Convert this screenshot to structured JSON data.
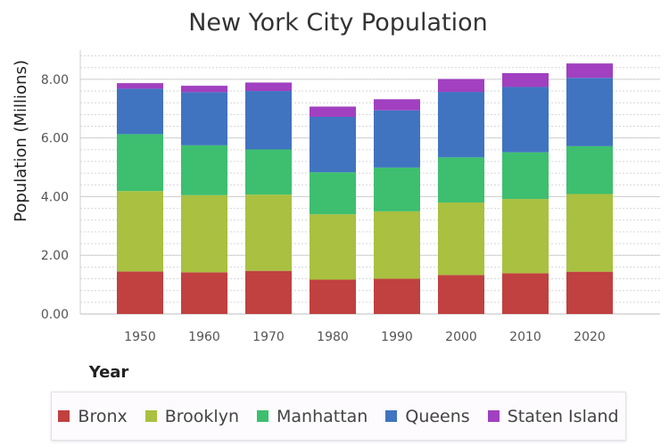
{
  "chart_data": {
    "type": "bar",
    "stacked": true,
    "title": "New York City Population",
    "xlabel": "Year",
    "ylabel": "Population (Millions)",
    "ylim": [
      0,
      9
    ],
    "yticks": [
      0,
      2,
      4,
      6,
      8
    ],
    "ytick_labels": [
      "0.00",
      "2.00",
      "4.00",
      "6.00",
      "8.00"
    ],
    "minor_grid_step": 0.4,
    "categories": [
      "1950",
      "1960",
      "1970",
      "1980",
      "1990",
      "2000",
      "2010",
      "2020"
    ],
    "series": [
      {
        "name": "Bronx",
        "color": "#c0413f",
        "values": [
          1.45,
          1.42,
          1.47,
          1.17,
          1.2,
          1.33,
          1.39,
          1.44
        ]
      },
      {
        "name": "Brooklyn",
        "color": "#a9c040",
        "values": [
          2.74,
          2.63,
          2.6,
          2.23,
          2.3,
          2.47,
          2.53,
          2.65
        ]
      },
      {
        "name": "Manhattan",
        "color": "#3dbf6f",
        "values": [
          1.94,
          1.7,
          1.54,
          1.43,
          1.49,
          1.54,
          1.59,
          1.63
        ]
      },
      {
        "name": "Queens",
        "color": "#4074c0",
        "values": [
          1.55,
          1.81,
          1.99,
          1.89,
          1.95,
          2.23,
          2.23,
          2.33
        ]
      },
      {
        "name": "Staten Island",
        "color": "#a140c0",
        "values": [
          0.19,
          0.22,
          0.29,
          0.35,
          0.38,
          0.44,
          0.47,
          0.49
        ]
      }
    ],
    "legend": {
      "position": "bottom"
    },
    "grid": true
  }
}
